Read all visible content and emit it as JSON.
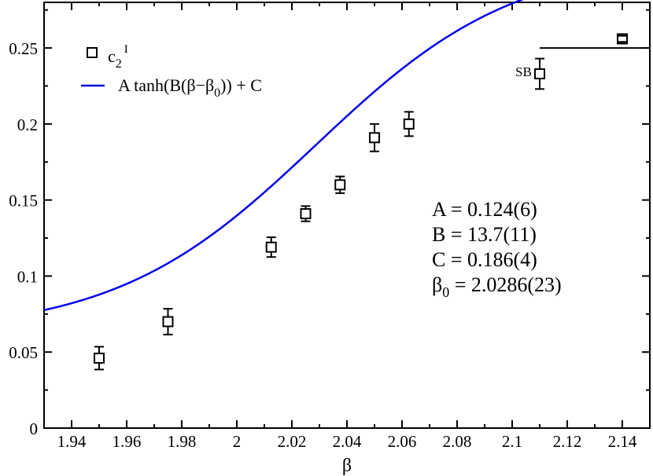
{
  "chart_data": {
    "type": "scatter",
    "xlabel": "β",
    "ylabel": "",
    "xlim": [
      1.93,
      2.15
    ],
    "ylim": [
      0,
      0.28
    ],
    "xticks": [
      1.94,
      1.96,
      1.98,
      2.0,
      2.02,
      2.04,
      2.06,
      2.08,
      2.1,
      2.12,
      2.14
    ],
    "xtick_labels": [
      "1.94",
      "1.96",
      "1.98",
      "2",
      "2.02",
      "2.04",
      "2.06",
      "2.08",
      "2.1",
      "2.12",
      "2.14"
    ],
    "yticks": [
      0,
      0.05,
      0.1,
      0.15,
      0.2,
      0.25
    ],
    "ytick_labels": [
      "0",
      "0.05",
      "0.1",
      "0.15",
      "0.2",
      "0.25"
    ],
    "grid": false,
    "legend_position": "top-left",
    "series": [
      {
        "name_main": "c",
        "name_sub": "2",
        "name_sup": "I",
        "kind": "points",
        "marker": "open-square",
        "color": "#000000",
        "points": [
          {
            "x": 1.95,
            "y": 0.046,
            "err": 0.0075
          },
          {
            "x": 1.975,
            "y": 0.07,
            "err": 0.0085
          },
          {
            "x": 2.0125,
            "y": 0.119,
            "err": 0.0065
          },
          {
            "x": 2.025,
            "y": 0.141,
            "err": 0.005
          },
          {
            "x": 2.0375,
            "y": 0.16,
            "err": 0.0055
          },
          {
            "x": 2.05,
            "y": 0.191,
            "err": 0.009
          },
          {
            "x": 2.0625,
            "y": 0.2,
            "err": 0.008
          },
          {
            "x": 2.11,
            "y": 0.233,
            "err": 0.01
          },
          {
            "x": 2.14,
            "y": 0.256,
            "err": 0.002
          }
        ]
      },
      {
        "name_main": "A tanh(B(β−β",
        "name_sub": "0",
        "name_tail": ")) + C",
        "kind": "fit",
        "color": "#0000ee",
        "params": {
          "A": 0.124,
          "B": 13.7,
          "C": 0.186,
          "beta0": 2.0286
        }
      }
    ],
    "reference_line": {
      "label": "SB",
      "y": 0.25,
      "x_start": 2.11,
      "x_end": 2.15
    },
    "annotation": {
      "lines": [
        {
          "text": "A = 0.124(6)"
        },
        {
          "text": "B = 13.7(11)"
        },
        {
          "text": "C = 0.186(4)"
        },
        {
          "main": "β",
          "sub": "0",
          "rest": " = 2.0286(23)"
        }
      ]
    }
  }
}
